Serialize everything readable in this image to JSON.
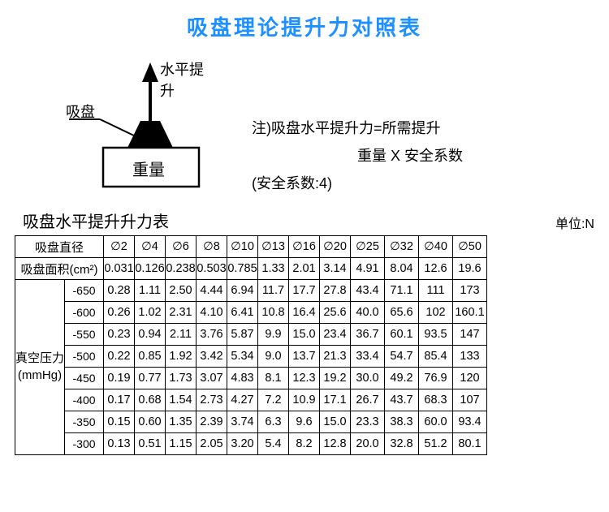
{
  "colors": {
    "title": "#1e90ff",
    "text": "#000000",
    "border": "#000000",
    "background": "#ffffff"
  },
  "title": "吸盘理论提升力对照表",
  "diagram": {
    "arrow_label": "水平提升",
    "cup_label": "吸盘",
    "box_label": "重量"
  },
  "notes": {
    "line1": "注)吸盘水平提升力=所需提升",
    "line2": "重量 X 安全系数",
    "line3": "(安全系数:4)"
  },
  "subtitle": "吸盘水平提升升力表",
  "unit": "单位:N",
  "table": {
    "row_header_top": "吸盘直径",
    "row_header_area": "吸盘面积(cm²)",
    "row_header_pressure_l1": "真空压力",
    "row_header_pressure_l2": "(mmHg)",
    "diameters": [
      "∅2",
      "∅4",
      "∅6",
      "∅8",
      "∅10",
      "∅13",
      "∅16",
      "∅20",
      "∅25",
      "∅32",
      "∅40",
      "∅50"
    ],
    "areas": [
      "0.031",
      "0.126",
      "0.238",
      "0.503",
      "0.785",
      "1.33",
      "2.01",
      "3.14",
      "4.91",
      "8.04",
      "12.6",
      "19.6"
    ],
    "rows": [
      {
        "p": "-650",
        "v": [
          "0.28",
          "1.11",
          "2.50",
          "4.44",
          "6.94",
          "11.7",
          "17.7",
          "27.8",
          "43.4",
          "71.1",
          "111",
          "173"
        ]
      },
      {
        "p": "-600",
        "v": [
          "0.26",
          "1.02",
          "2.31",
          "4.10",
          "6.41",
          "10.8",
          "16.4",
          "25.6",
          "40.0",
          "65.6",
          "102",
          "160.1"
        ]
      },
      {
        "p": "-550",
        "v": [
          "0.23",
          "0.94",
          "2.11",
          "3.76",
          "5.87",
          "9.9",
          "15.0",
          "23.4",
          "36.7",
          "60.1",
          "93.5",
          "147"
        ]
      },
      {
        "p": "-500",
        "v": [
          "0.22",
          "0.85",
          "1.92",
          "3.42",
          "5.34",
          "9.0",
          "13.7",
          "21.3",
          "33.4",
          "54.7",
          "85.4",
          "133"
        ]
      },
      {
        "p": "-450",
        "v": [
          "0.19",
          "0.77",
          "1.73",
          "3.07",
          "4.83",
          "8.1",
          "12.3",
          "19.2",
          "30.0",
          "49.2",
          "76.9",
          "120"
        ]
      },
      {
        "p": "-400",
        "v": [
          "0.17",
          "0.68",
          "1.54",
          "2.73",
          "4.27",
          "7.2",
          "10.9",
          "17.1",
          "26.7",
          "43.7",
          "68.3",
          "107"
        ]
      },
      {
        "p": "-350",
        "v": [
          "0.15",
          "0.60",
          "1.35",
          "2.39",
          "3.74",
          "6.3",
          "9.6",
          "15.0",
          "23.3",
          "38.3",
          "60.0",
          "93.4"
        ]
      },
      {
        "p": "-300",
        "v": [
          "0.13",
          "0.51",
          "1.15",
          "2.05",
          "3.20",
          "5.4",
          "8.2",
          "12.8",
          "20.0",
          "32.8",
          "51.2",
          "80.1"
        ]
      }
    ]
  }
}
